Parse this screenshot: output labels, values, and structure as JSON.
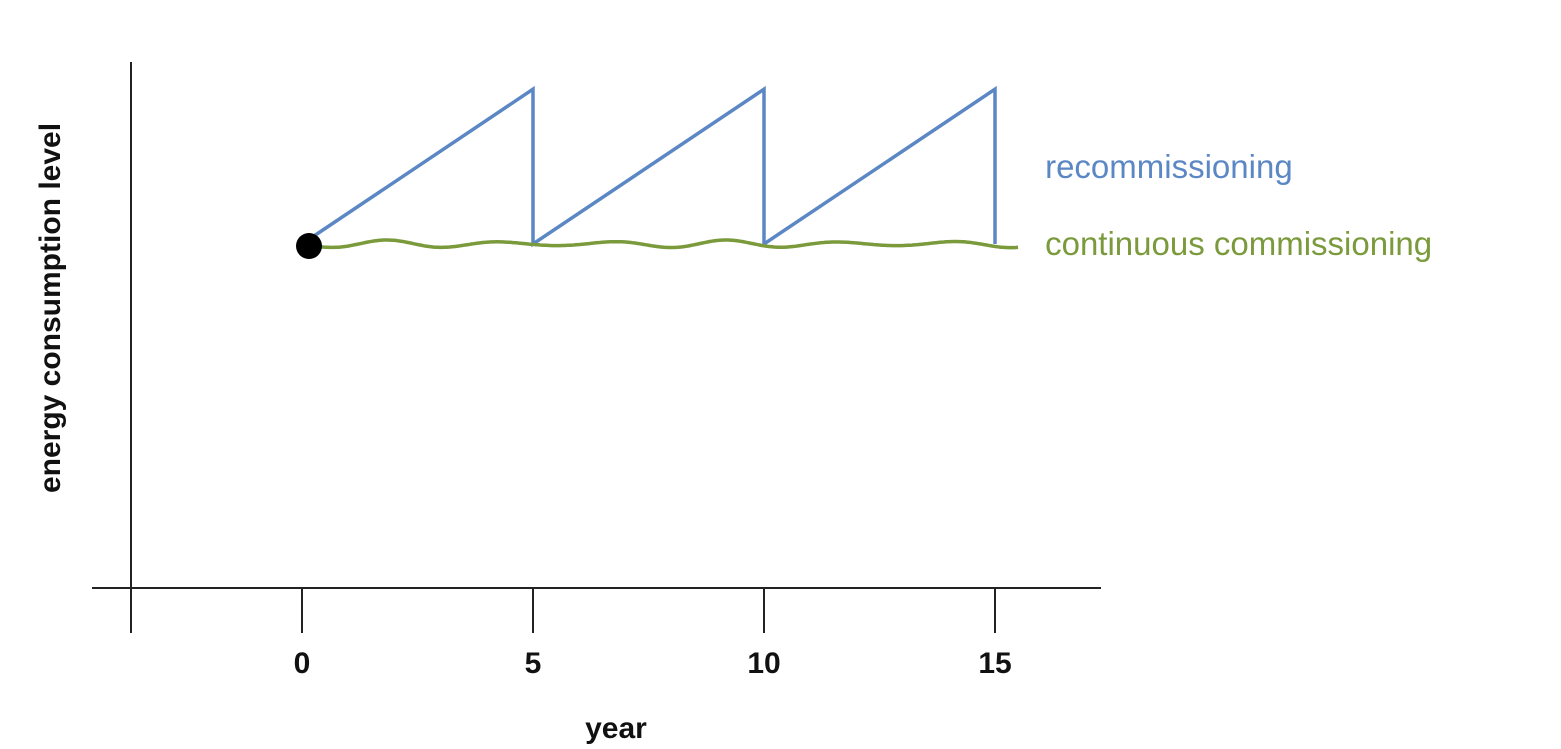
{
  "chart_data": {
    "type": "line",
    "title": "",
    "xlabel": "year",
    "ylabel": "energy consumption level",
    "x_ticks": [
      0,
      5,
      10,
      15
    ],
    "xlim": [
      -3.7,
      17.3
    ],
    "ylim": [
      0,
      1.45
    ],
    "grid": false,
    "legend": "inline labels at right end of lines",
    "start_point": {
      "x": 0,
      "y": 1
    },
    "series": [
      {
        "name": "recommissioning",
        "color": "#5b87c5",
        "points": [
          [
            0,
            1
          ],
          [
            5,
            1.45
          ],
          [
            5,
            1
          ],
          [
            10,
            1.45
          ],
          [
            10,
            1
          ],
          [
            15,
            1.45
          ],
          [
            15,
            1
          ]
        ]
      },
      {
        "name": "continuous commissioning",
        "color": "#7a9a3c",
        "points": [
          [
            0,
            1
          ],
          [
            15.5,
            1
          ]
        ],
        "style": "wavy"
      }
    ]
  }
}
